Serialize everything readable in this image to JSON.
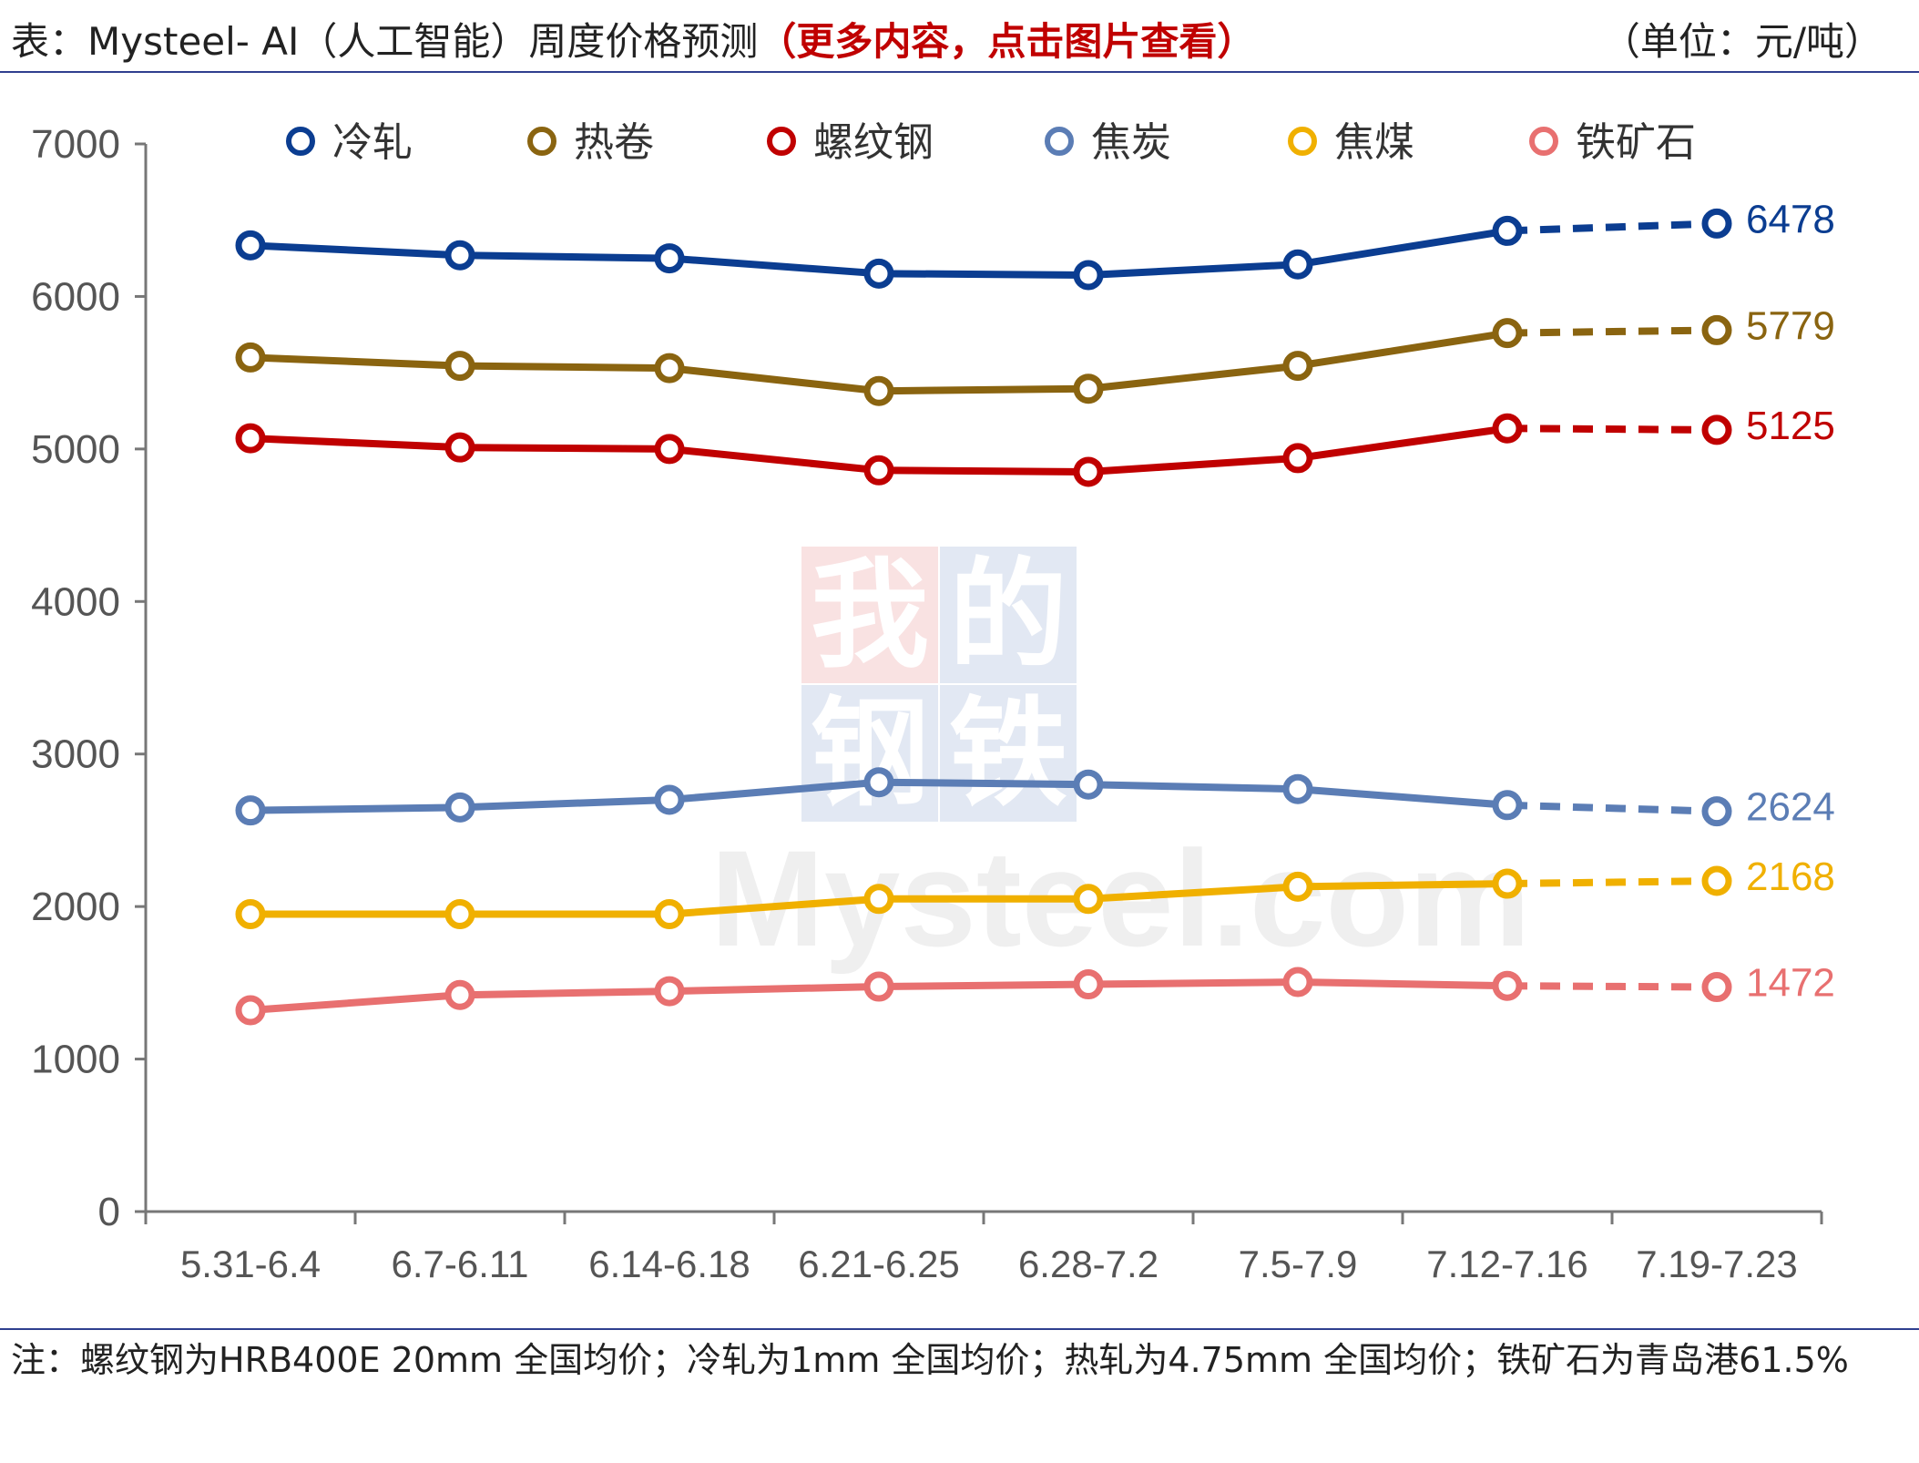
{
  "header": {
    "title_prefix": "表：Mysteel- AI（人工智能）周度价格预测",
    "title_highlight": "（更多内容，点击图片查看）",
    "unit": "（单位：元/吨）"
  },
  "footnote": "注：螺纹钢为HRB400E 20mm 全国均价；冷轧为1mm 全国均价；热轧为4.75mm 全国均价；铁矿石为青岛港61.5%",
  "watermark": {
    "chars": [
      "我",
      "的",
      "钢",
      "铁"
    ],
    "text": "Mysteel.com"
  },
  "chart_data": {
    "type": "line",
    "categories": [
      "5.31-6.4",
      "6.7-6.11",
      "6.14-6.18",
      "6.21-6.25",
      "6.28-7.2",
      "7.5-7.9",
      "7.12-7.16",
      "7.19-7.23"
    ],
    "ylim": [
      0,
      7000
    ],
    "yticks": [
      0,
      1000,
      2000,
      3000,
      4000,
      5000,
      6000,
      7000
    ],
    "forecast_from_index": 6,
    "legend_position": "top",
    "series": [
      {
        "name": "冷轧",
        "color": "#0b3d91",
        "values": [
          6335,
          6270,
          6250,
          6150,
          6140,
          6210,
          6430,
          6478
        ],
        "end_label": "6478"
      },
      {
        "name": "热卷",
        "color": "#8a6410",
        "values": [
          5600,
          5545,
          5530,
          5380,
          5395,
          5545,
          5760,
          5779
        ],
        "end_label": "5779"
      },
      {
        "name": "螺纹钢",
        "color": "#c00000",
        "values": [
          5070,
          5010,
          5000,
          4860,
          4850,
          4940,
          5135,
          5125
        ],
        "end_label": "5125"
      },
      {
        "name": "焦炭",
        "color": "#5b7db5",
        "values": [
          2630,
          2650,
          2700,
          2815,
          2800,
          2770,
          2665,
          2624
        ],
        "end_label": "2624"
      },
      {
        "name": "焦煤",
        "color": "#f0b000",
        "values": [
          1950,
          1950,
          1950,
          2050,
          2050,
          2130,
          2150,
          2168
        ],
        "end_label": "2168"
      },
      {
        "name": "铁矿石",
        "color": "#e87070",
        "values": [
          1320,
          1420,
          1445,
          1475,
          1490,
          1505,
          1480,
          1472
        ],
        "end_label": "1472"
      }
    ]
  }
}
